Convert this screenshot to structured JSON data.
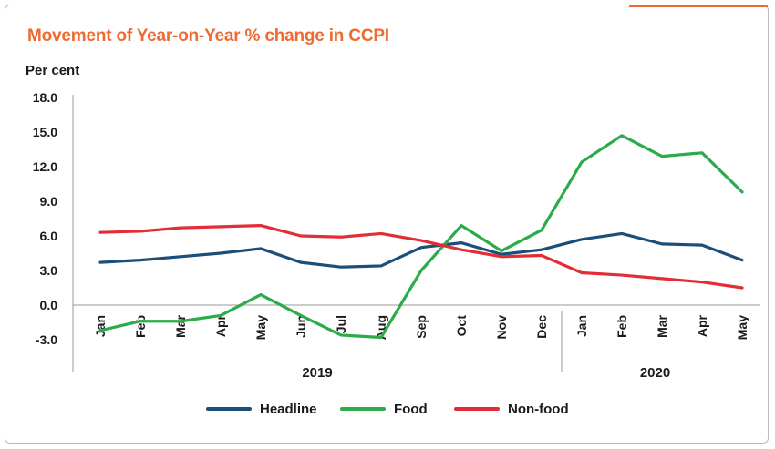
{
  "chart_data": {
    "type": "line",
    "title": "Movement of Year-on-Year % change in CCPI",
    "ylabel": "Per cent",
    "ylim": [
      -3.0,
      18.0
    ],
    "yticks": [
      "18.0",
      "15.0",
      "12.0",
      "9.0",
      "6.0",
      "3.0",
      "0.0",
      "-3.0"
    ],
    "categories": [
      "Jan",
      "Feb",
      "Mar",
      "Apr",
      "May",
      "Jun",
      "Jul",
      "Aug",
      "Sep",
      "Oct",
      "Nov",
      "Dec",
      "Jan",
      "Feb",
      "Mar",
      "Apr",
      "May"
    ],
    "groups": [
      {
        "label": "2019",
        "start": 0,
        "end": 11
      },
      {
        "label": "2020",
        "start": 12,
        "end": 16
      }
    ],
    "series": [
      {
        "name": "Headline",
        "color": "#1b4f7a",
        "values": [
          3.7,
          3.9,
          4.2,
          4.5,
          4.9,
          3.7,
          3.3,
          3.4,
          5.0,
          5.4,
          4.4,
          4.8,
          5.7,
          6.2,
          5.3,
          5.2,
          3.9
        ]
      },
      {
        "name": "Food",
        "color": "#2bab4a",
        "values": [
          -2.2,
          -1.4,
          -1.4,
          -0.9,
          0.9,
          -0.9,
          -2.6,
          -2.8,
          3.0,
          6.9,
          4.7,
          6.5,
          12.4,
          14.7,
          12.9,
          13.2,
          9.8
        ]
      },
      {
        "name": "Non-food",
        "color": "#e32d36",
        "values": [
          6.3,
          6.4,
          6.7,
          6.8,
          6.9,
          6.0,
          5.9,
          6.2,
          5.6,
          4.8,
          4.2,
          4.3,
          2.8,
          2.6,
          2.3,
          2.0,
          1.5
        ]
      }
    ],
    "legend": "bottom",
    "grid": false
  }
}
